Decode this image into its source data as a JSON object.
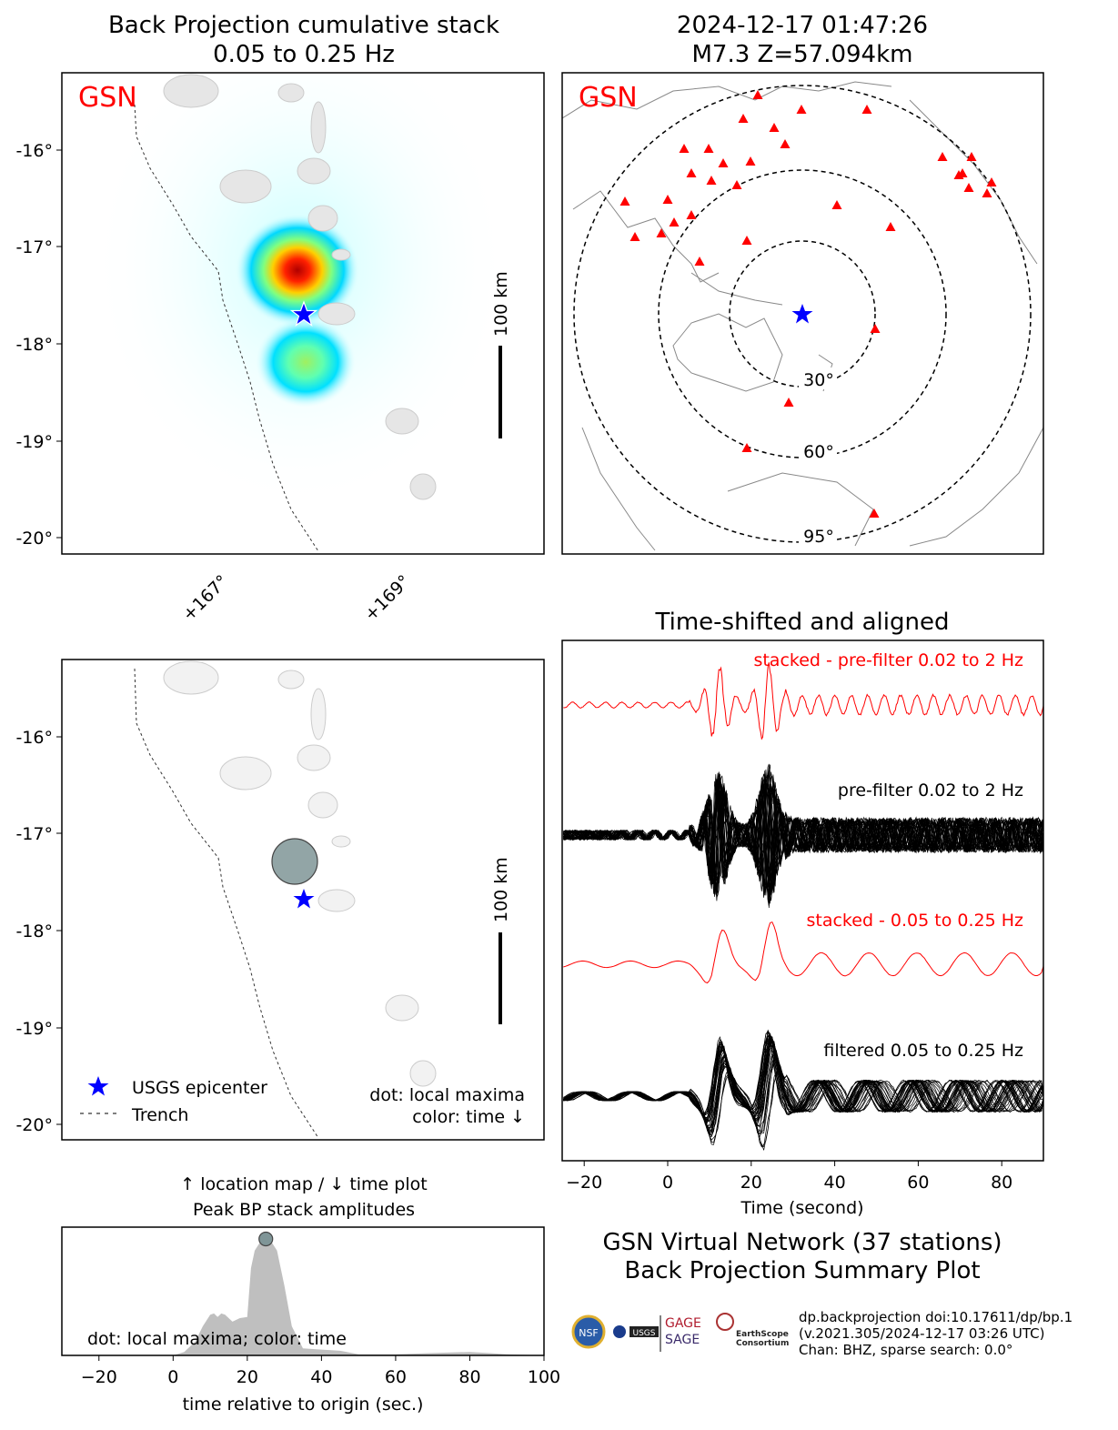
{
  "panel_bp": {
    "title_line1": "Back Projection cumulative stack",
    "title_line2": "0.05 to 0.25 Hz",
    "network_label": "GSN",
    "lat_ticks": [
      "-16°",
      "-17°",
      "-18°",
      "-19°",
      "-20°"
    ],
    "lon_ticks": [
      "+167°",
      "+169°"
    ],
    "scale_label": "100 km"
  },
  "panel_global": {
    "title_line1": "2024-12-17 01:47:26",
    "title_line2": "M7.3 Z=57.094km",
    "network_label": "GSN",
    "ring_labels": [
      "30°",
      "60°",
      "95°"
    ]
  },
  "panel_location": {
    "lat_ticks": [
      "-16°",
      "-17°",
      "-18°",
      "-19°",
      "-20°"
    ],
    "scale_label": "100 km",
    "legend": {
      "epicenter": "USGS epicenter",
      "trench": "Trench"
    },
    "note_line1": "dot: local maxima",
    "note_line2": "color: time ↓"
  },
  "colors": {
    "network": "#ff0000",
    "epicenter": "#0000ff",
    "stacked": "#ff0000",
    "traces": "#000000",
    "amplitude_fill": "#bfbfbf",
    "maxima_dot": "#7f9597"
  },
  "chart_data": [
    {
      "type": "line",
      "title": "Time-shifted and aligned",
      "xlabel": "Time (second)",
      "xlim": [
        -25,
        90
      ],
      "x_ticks": [
        "−20",
        "0",
        "20",
        "40",
        "60",
        "80"
      ],
      "x_tick_values": [
        -20,
        0,
        20,
        40,
        60,
        80
      ],
      "series": [
        {
          "name": "stacked - pre-filter 0.02 to 2 Hz",
          "color": "#ff0000"
        },
        {
          "name": "pre-filter 0.02 to 2 Hz",
          "color": "#000000"
        },
        {
          "name": "stacked - 0.05 to 0.25 Hz",
          "color": "#ff0000"
        },
        {
          "name": "filtered 0.05 to 0.25 Hz",
          "color": "#000000"
        }
      ]
    },
    {
      "type": "area",
      "title_line1": "↑ location map / ↓ time plot",
      "title_line2": "Peak BP stack amplitudes",
      "xlabel": "time relative to origin (sec.)",
      "xlim": [
        -30,
        100
      ],
      "x_ticks": [
        "−20",
        "0",
        "20",
        "40",
        "60",
        "80",
        "100"
      ],
      "x_tick_values": [
        -20,
        0,
        20,
        40,
        60,
        80,
        100
      ],
      "x": [
        -30,
        0,
        3,
        6,
        8,
        10,
        11,
        12,
        13,
        14,
        16,
        18,
        20,
        21,
        22,
        24,
        25,
        26,
        28,
        30,
        32,
        35,
        40,
        45,
        50,
        60,
        70,
        80,
        85,
        90,
        100
      ],
      "values": [
        0,
        0,
        0.03,
        0.12,
        0.25,
        0.35,
        0.36,
        0.33,
        0.36,
        0.35,
        0.29,
        0.32,
        0.33,
        0.75,
        0.9,
        1.0,
        1.0,
        1.0,
        0.9,
        0.6,
        0.25,
        0.06,
        0.05,
        0.04,
        0.01,
        0.01,
        0.02,
        0.03,
        0.02,
        0.01,
        0
      ],
      "annotation": "dot: local maxima; color: time",
      "maxima": [
        {
          "x": 25,
          "y": 1.0
        }
      ]
    }
  ],
  "summary": {
    "line1": "GSN Virtual Network (37 stations)",
    "line2": "Back Projection Summary Plot"
  },
  "credits": {
    "line1": "dp.backprojection doi:10.17611/dp/bp.1",
    "line2": "(v.2021.305/2024-12-17 03:26 UTC)",
    "line3": "Chan: BHZ, sparse search: 0.0°",
    "logos": [
      "NSF",
      "NASA",
      "USGS",
      "GAGE",
      "SAGE",
      "EarthScope Consortium"
    ]
  }
}
